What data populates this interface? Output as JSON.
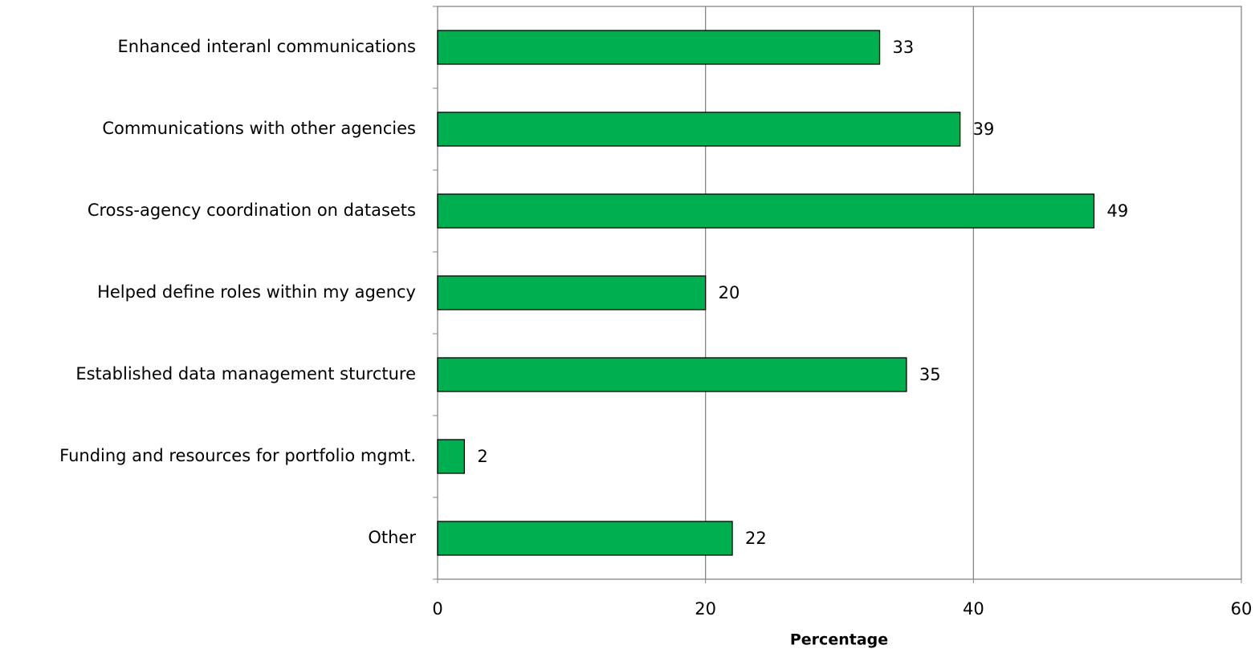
{
  "chart_data": {
    "type": "barh",
    "categories": [
      "Enhanced interanl communications",
      "Communications with other agencies",
      "Cross-agency coordination on datasets",
      "Helped define roles within my agency",
      "Established data management sturcture",
      "Funding and resources for portfolio mgmt.",
      "Other"
    ],
    "values": [
      33,
      39,
      49,
      20,
      35,
      2,
      22
    ],
    "color": "#00b050",
    "x_label": "Percentage",
    "xlim": [
      0,
      60
    ],
    "xticks": [
      0,
      20,
      40,
      60
    ],
    "grid": true
  }
}
